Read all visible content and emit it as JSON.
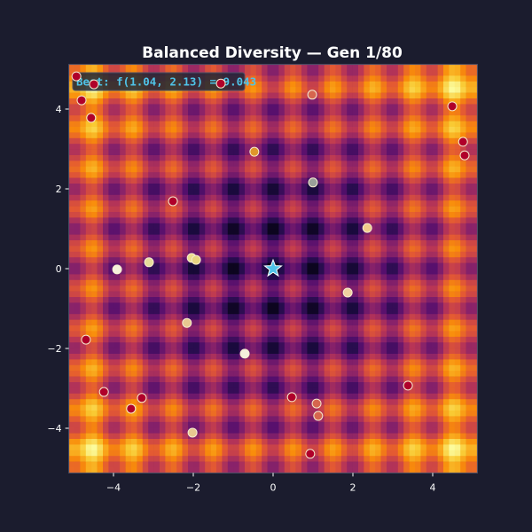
{
  "chart_data": {
    "type": "heatmap",
    "title": "Balanced Diversity — Gen 1/80",
    "annotation": "Best: f(1.04, 2.13) = 9.043",
    "xlim": [
      -5.12,
      5.12
    ],
    "ylim": [
      -5.12,
      5.12
    ],
    "xticks": [
      -4,
      -2,
      0,
      2,
      4
    ],
    "yticks": [
      -4,
      -2,
      0,
      2,
      4
    ],
    "xtick_labels": [
      "−4",
      "−2",
      "0",
      "2",
      "4"
    ],
    "ytick_labels": [
      "−4",
      "−2",
      "0",
      "2",
      "4"
    ],
    "colormap": "inferno",
    "grid": false,
    "optimum_marker": {
      "x": 0,
      "y": 0,
      "color": "#4fc3e8",
      "shape": "star"
    },
    "population": [
      {
        "x": -4.93,
        "y": 4.82,
        "color": "#b0002a"
      },
      {
        "x": -4.49,
        "y": 4.62,
        "color": "#b0002a"
      },
      {
        "x": -4.8,
        "y": 4.22,
        "color": "#b0002a"
      },
      {
        "x": -4.56,
        "y": 3.78,
        "color": "#b0002a"
      },
      {
        "x": -1.31,
        "y": 4.64,
        "color": "#b0002a"
      },
      {
        "x": 0.98,
        "y": 4.36,
        "color": "#d6664e"
      },
      {
        "x": 4.49,
        "y": 4.07,
        "color": "#b0002a"
      },
      {
        "x": 4.76,
        "y": 3.18,
        "color": "#b0002a"
      },
      {
        "x": 4.8,
        "y": 2.84,
        "color": "#b0002a"
      },
      {
        "x": -0.47,
        "y": 2.93,
        "color": "#e0962a"
      },
      {
        "x": 1.0,
        "y": 2.16,
        "color": "#9aa09a"
      },
      {
        "x": -2.51,
        "y": 1.69,
        "color": "#b0002a"
      },
      {
        "x": 2.36,
        "y": 1.02,
        "color": "#f0cc8a"
      },
      {
        "x": -3.91,
        "y": -0.02,
        "color": "#f5f0dc"
      },
      {
        "x": -3.11,
        "y": 0.16,
        "color": "#e6dc9a"
      },
      {
        "x": -2.04,
        "y": 0.27,
        "color": "#ecdc8a"
      },
      {
        "x": -1.93,
        "y": 0.22,
        "color": "#e8d480"
      },
      {
        "x": 1.87,
        "y": -0.6,
        "color": "#f0d0a0"
      },
      {
        "x": -2.16,
        "y": -1.36,
        "color": "#e8c890"
      },
      {
        "x": -4.69,
        "y": -1.78,
        "color": "#b0002a"
      },
      {
        "x": -0.71,
        "y": -2.13,
        "color": "#f5f0dc"
      },
      {
        "x": -4.24,
        "y": -3.09,
        "color": "#b0002a"
      },
      {
        "x": -3.29,
        "y": -3.24,
        "color": "#b0002a"
      },
      {
        "x": -3.56,
        "y": -3.51,
        "color": "#b0002a"
      },
      {
        "x": 0.47,
        "y": -3.22,
        "color": "#b0002a"
      },
      {
        "x": 1.09,
        "y": -3.38,
        "color": "#d6664e"
      },
      {
        "x": 1.13,
        "y": -3.69,
        "color": "#d6664e"
      },
      {
        "x": 3.38,
        "y": -2.93,
        "color": "#b0002a"
      },
      {
        "x": -2.02,
        "y": -4.11,
        "color": "#e8c890"
      },
      {
        "x": 0.93,
        "y": -4.64,
        "color": "#b0002a"
      }
    ]
  }
}
